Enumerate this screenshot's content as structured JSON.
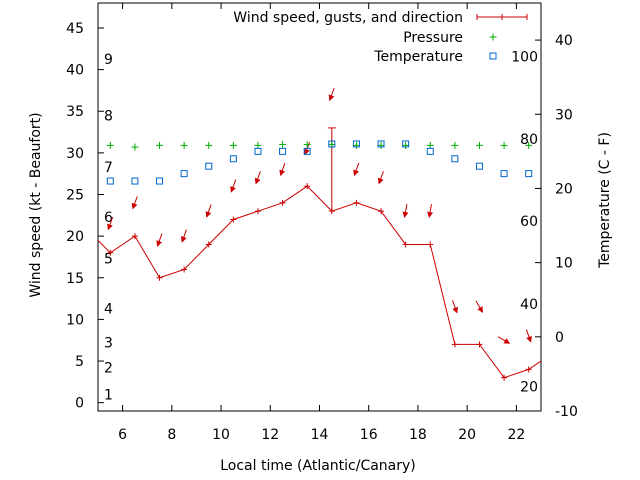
{
  "chart_data": {
    "type": "line",
    "xlabel": "Local time (Atlantic/Canary)",
    "ylabel_left": "Wind speed (kt - Beaufort)",
    "ylabel_right": "Temperature (C - F)",
    "xlim": [
      5,
      23
    ],
    "ylim_left": [
      -1,
      48
    ],
    "ylim_right": [
      -10,
      45
    ],
    "x_ticks": [
      6,
      8,
      10,
      12,
      14,
      16,
      18,
      20,
      22
    ],
    "y_left_ticks": [
      0,
      5,
      10,
      15,
      20,
      25,
      30,
      35,
      40,
      45
    ],
    "y_right_ticks": [
      -10,
      0,
      10,
      20,
      30,
      40
    ],
    "beaufort_labels": [
      {
        "label": "1",
        "kt": 1
      },
      {
        "label": "2",
        "kt": 4.2
      },
      {
        "label": "3",
        "kt": 7.2
      },
      {
        "label": "4",
        "kt": 11.3
      },
      {
        "label": "5",
        "kt": 17.3
      },
      {
        "label": "6",
        "kt": 22.3
      },
      {
        "label": "7",
        "kt": 28.3
      },
      {
        "label": "8",
        "kt": 34.5
      },
      {
        "label": "9",
        "kt": 41.3
      }
    ],
    "fahrenheit_labels": [
      {
        "label": "20",
        "c": -6.7
      },
      {
        "label": "40",
        "c": 4.4
      },
      {
        "label": "60",
        "c": 15.6
      },
      {
        "label": "80",
        "c": 26.7
      },
      {
        "label": "100",
        "c": 37.8
      }
    ],
    "series": [
      {
        "name": "Wind speed, gusts, and direction",
        "color": "#cc0000",
        "x": [
          5,
          5.5,
          6.5,
          7.5,
          8.5,
          9.5,
          10.5,
          11.5,
          12.5,
          13.5,
          14.5,
          15.5,
          16.5,
          17.5,
          18.5,
          19.5,
          20.5,
          21.5,
          22.5,
          23
        ],
        "y": [
          19.5,
          18,
          20,
          15,
          16,
          19,
          22,
          23,
          24,
          26,
          23,
          24,
          23,
          19,
          19,
          7,
          7,
          3,
          4,
          5
        ],
        "gusts": [
          {
            "x": 14.5,
            "y": 33
          }
        ]
      },
      {
        "name": "Pressure",
        "color": "#00aa00",
        "x": [
          5.5,
          6.5,
          7.5,
          8.5,
          9.5,
          10.5,
          11.5,
          12.5,
          13.5,
          14.5,
          15.5,
          16.5,
          17.5,
          18.5,
          19.5,
          20.5,
          21.5,
          22.5
        ],
        "y": [
          30.9,
          30.7,
          30.9,
          30.9,
          30.9,
          30.9,
          30.9,
          31,
          31,
          31,
          30.9,
          30.9,
          30.9,
          30.9,
          30.9,
          30.9,
          30.9,
          30.9
        ]
      },
      {
        "name": "Temperature",
        "color": "#0066cc",
        "x": [
          5.5,
          6.5,
          7.5,
          8.5,
          9.5,
          10.5,
          11.5,
          12.5,
          13.5,
          14.5,
          15.5,
          16.5,
          17.5,
          18.5,
          19.5,
          20.5,
          21.5,
          22.5
        ],
        "y": [
          21,
          21,
          21,
          22,
          23,
          24,
          25,
          25,
          25,
          26,
          26,
          26,
          26,
          25,
          24,
          23,
          22,
          22
        ]
      }
    ],
    "wind_direction": [
      {
        "x": 5.5,
        "y": 21.5,
        "deg": 20
      },
      {
        "x": 6.5,
        "y": 24,
        "deg": 20
      },
      {
        "x": 7.5,
        "y": 19.5,
        "deg": 20
      },
      {
        "x": 8.5,
        "y": 20,
        "deg": 20
      },
      {
        "x": 9.5,
        "y": 23,
        "deg": 20
      },
      {
        "x": 10.5,
        "y": 26,
        "deg": 20
      },
      {
        "x": 11.5,
        "y": 27,
        "deg": 20
      },
      {
        "x": 12.5,
        "y": 28,
        "deg": 20
      },
      {
        "x": 13.5,
        "y": 30.5,
        "deg": 20
      },
      {
        "x": 14.5,
        "y": 37,
        "deg": 20
      },
      {
        "x": 15.5,
        "y": 28,
        "deg": 20
      },
      {
        "x": 16.5,
        "y": 27,
        "deg": 20
      },
      {
        "x": 17.5,
        "y": 23,
        "deg": 10
      },
      {
        "x": 18.5,
        "y": 23,
        "deg": 10
      },
      {
        "x": 19.5,
        "y": 11.5,
        "deg": 340
      },
      {
        "x": 20.5,
        "y": 11.5,
        "deg": 330
      },
      {
        "x": 21.5,
        "y": 7.5,
        "deg": 300
      },
      {
        "x": 22.5,
        "y": 8,
        "deg": 340
      }
    ],
    "legend_position": "top-right",
    "grid": false
  }
}
